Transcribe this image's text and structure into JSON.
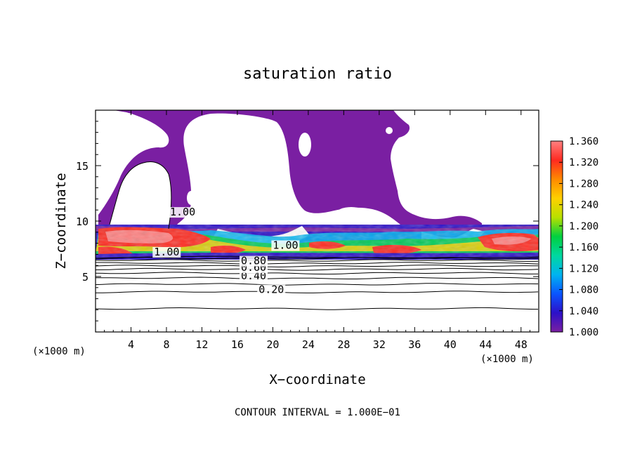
{
  "chart_data": {
    "type": "heatmap",
    "title": "saturation ratio",
    "xlabel": "X−coordinate",
    "ylabel": "Z−coordinate",
    "x_unit": "(×1000 m)",
    "y_unit": "(×1000 m)",
    "xlim": [
      0,
      50
    ],
    "ylim": [
      0,
      20
    ],
    "x_ticks": [
      4,
      8,
      12,
      16,
      20,
      24,
      28,
      32,
      36,
      40,
      44,
      48
    ],
    "y_ticks": [
      5,
      10,
      15
    ],
    "footer": "CONTOUR INTERVAL = 1.000E−01",
    "colorbar": {
      "min": 1.0,
      "max": 1.36,
      "ticks": [
        "1.360",
        "1.320",
        "1.280",
        "1.240",
        "1.200",
        "1.160",
        "1.120",
        "1.080",
        "1.040",
        "1.000"
      ],
      "colors": [
        "#7a1fa2",
        "#2c10c8",
        "#0a55ff",
        "#00b4f0",
        "#00d8a0",
        "#00d040",
        "#b8e000",
        "#ffd000",
        "#ff8a00",
        "#ff2a20",
        "#ff8080"
      ]
    },
    "contour_labels": [
      {
        "text": "0.20",
        "x": 18.4,
        "z": 3.5
      },
      {
        "text": "0.40",
        "x": 16.4,
        "z": 4.75
      },
      {
        "text": "0.60",
        "x": 16.4,
        "z": 5.5
      },
      {
        "text": "0.80",
        "x": 16.4,
        "z": 6.1
      },
      {
        "text": "1.00",
        "x": 6.6,
        "z": 6.9
      },
      {
        "text": "1.00",
        "x": 20.0,
        "z": 7.5
      },
      {
        "text": "1.00",
        "x": 8.4,
        "z": 10.5
      }
    ],
    "contour_levels_z": [
      2.1,
      3.6,
      4.3,
      4.85,
      5.3,
      5.65,
      5.95,
      6.2,
      6.45,
      6.65
    ]
  }
}
